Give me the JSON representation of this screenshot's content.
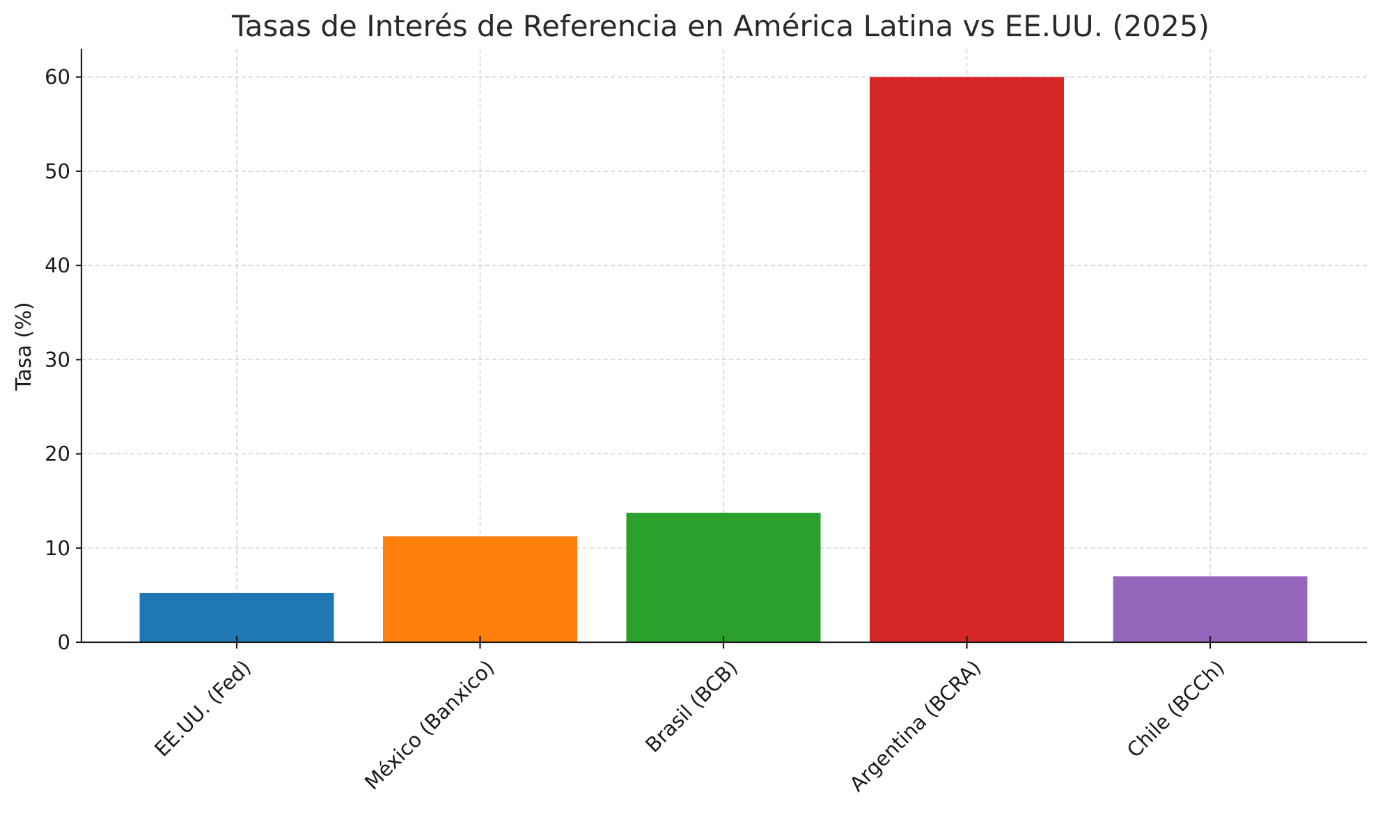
{
  "chart_data": {
    "type": "bar",
    "title": "Tasas de Interés de Referencia en América Latina vs EE.UU. (2025)",
    "xlabel": "",
    "ylabel": "Tasa (%)",
    "ylim": [
      0,
      63
    ],
    "yticks": [
      0,
      10,
      20,
      30,
      40,
      50,
      60
    ],
    "grid": true,
    "categories": [
      "EE.UU. (Fed)",
      "México (Banxico)",
      "Brasil (BCB)",
      "Argentina (BCRA)",
      "Chile (BCCh)"
    ],
    "values": [
      5.25,
      11.25,
      13.75,
      60,
      7
    ],
    "colors": [
      "#1f77b4",
      "#ff7f0e",
      "#2ca02c",
      "#d62728",
      "#9467bd"
    ]
  }
}
